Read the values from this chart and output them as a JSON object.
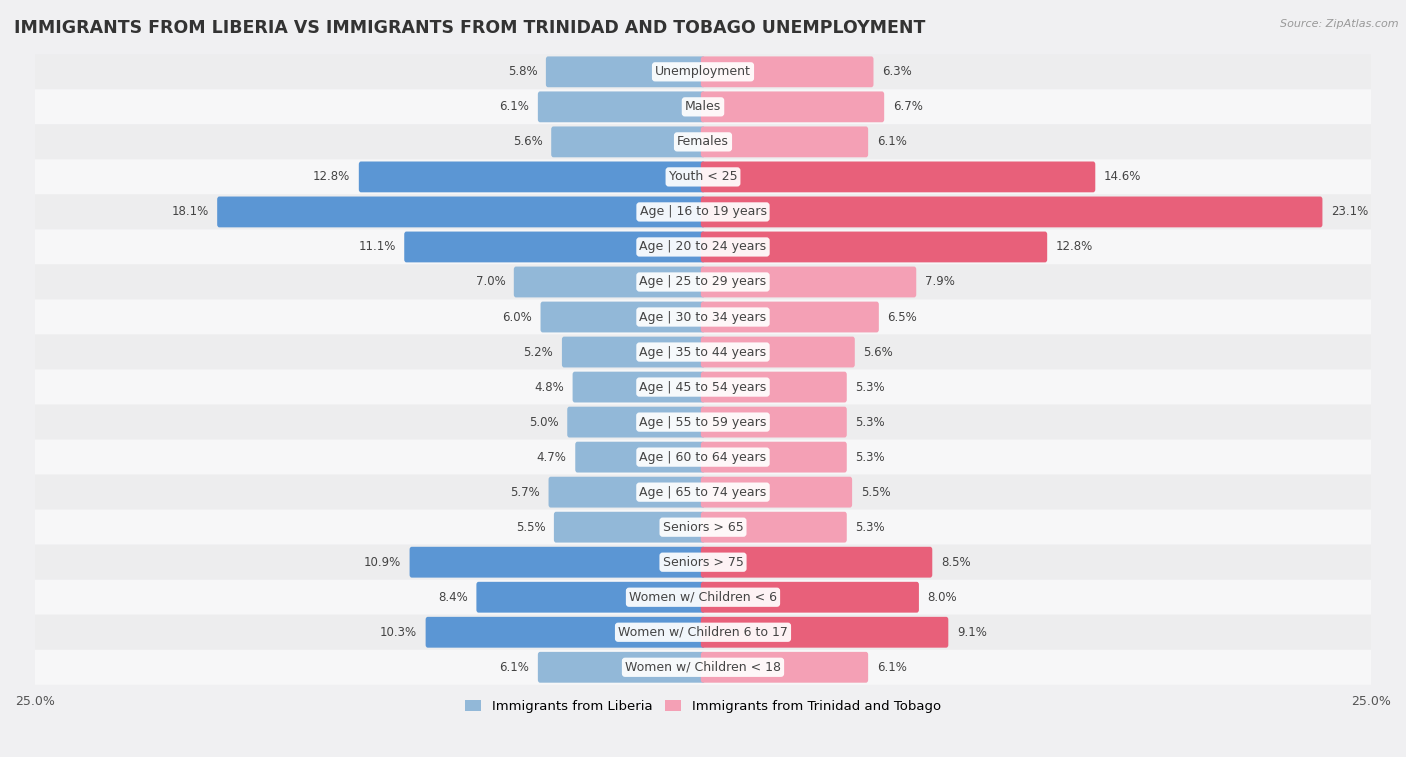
{
  "title": "IMMIGRANTS FROM LIBERIA VS IMMIGRANTS FROM TRINIDAD AND TOBAGO UNEMPLOYMENT",
  "source": "Source: ZipAtlas.com",
  "categories": [
    "Unemployment",
    "Males",
    "Females",
    "Youth < 25",
    "Age | 16 to 19 years",
    "Age | 20 to 24 years",
    "Age | 25 to 29 years",
    "Age | 30 to 34 years",
    "Age | 35 to 44 years",
    "Age | 45 to 54 years",
    "Age | 55 to 59 years",
    "Age | 60 to 64 years",
    "Age | 65 to 74 years",
    "Seniors > 65",
    "Seniors > 75",
    "Women w/ Children < 6",
    "Women w/ Children 6 to 17",
    "Women w/ Children < 18"
  ],
  "liberia_values": [
    5.8,
    6.1,
    5.6,
    12.8,
    18.1,
    11.1,
    7.0,
    6.0,
    5.2,
    4.8,
    5.0,
    4.7,
    5.7,
    5.5,
    10.9,
    8.4,
    10.3,
    6.1
  ],
  "trinidad_values": [
    6.3,
    6.7,
    6.1,
    14.6,
    23.1,
    12.8,
    7.9,
    6.5,
    5.6,
    5.3,
    5.3,
    5.3,
    5.5,
    5.3,
    8.5,
    8.0,
    9.1,
    6.1
  ],
  "liberia_color": "#92b8d8",
  "trinidad_color": "#f4a0b5",
  "liberia_highlight_color": "#5b96d4",
  "trinidad_highlight_color": "#e8607a",
  "highlight_rows": [
    3,
    4,
    5,
    14,
    15,
    16
  ],
  "xlim": 25.0,
  "row_colors_even": "#ededee",
  "row_colors_odd": "#f7f7f8",
  "background_color": "#f0f0f2",
  "title_fontsize": 12.5,
  "label_fontsize": 9,
  "value_fontsize": 8.5,
  "legend_label_liberia": "Immigrants from Liberia",
  "legend_label_trinidad": "Immigrants from Trinidad and Tobago"
}
